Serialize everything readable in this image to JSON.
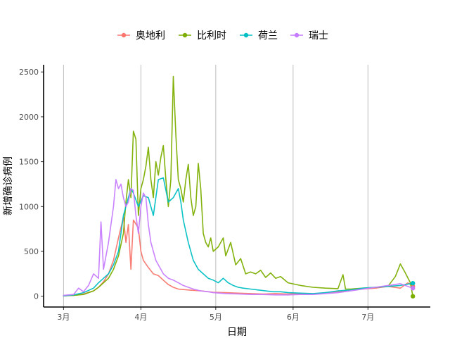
{
  "chart_data": {
    "type": "line",
    "title": "",
    "xlabel": "日期",
    "ylabel": "新增确诊病例",
    "x_ticks": [
      {
        "label": "3月",
        "day": 0
      },
      {
        "label": "4月",
        "day": 31
      },
      {
        "label": "5月",
        "day": 61
      },
      {
        "label": "6月",
        "day": 92
      },
      {
        "label": "7月",
        "day": 122
      }
    ],
    "y_ticks": [
      0,
      500,
      1000,
      1500,
      2000,
      2500
    ],
    "xlim": [
      -8,
      147
    ],
    "ylim": [
      -120,
      2580
    ],
    "grid": "vertical",
    "legend_position": "top",
    "series": [
      {
        "name": "奥地利",
        "color": "#F8766D",
        "values": [
          [
            0,
            5
          ],
          [
            4,
            10
          ],
          [
            8,
            25
          ],
          [
            12,
            60
          ],
          [
            14,
            100
          ],
          [
            16,
            160
          ],
          [
            18,
            250
          ],
          [
            20,
            400
          ],
          [
            22,
            650
          ],
          [
            24,
            880
          ],
          [
            25,
            600
          ],
          [
            26,
            800
          ],
          [
            27,
            300
          ],
          [
            28,
            850
          ],
          [
            30,
            760
          ],
          [
            31,
            500
          ],
          [
            32,
            400
          ],
          [
            34,
            320
          ],
          [
            36,
            250
          ],
          [
            38,
            230
          ],
          [
            40,
            180
          ],
          [
            42,
            130
          ],
          [
            44,
            100
          ],
          [
            46,
            80
          ],
          [
            50,
            70
          ],
          [
            55,
            60
          ],
          [
            60,
            45
          ],
          [
            65,
            40
          ],
          [
            70,
            35
          ],
          [
            75,
            30
          ],
          [
            80,
            25
          ],
          [
            85,
            30
          ],
          [
            90,
            25
          ],
          [
            95,
            30
          ],
          [
            100,
            25
          ],
          [
            105,
            40
          ],
          [
            110,
            50
          ],
          [
            115,
            70
          ],
          [
            120,
            80
          ],
          [
            125,
            90
          ],
          [
            130,
            110
          ],
          [
            135,
            90
          ],
          [
            138,
            150
          ],
          [
            140,
            110
          ]
        ]
      },
      {
        "name": "比利时",
        "color": "#7CAE00",
        "values": [
          [
            0,
            5
          ],
          [
            4,
            10
          ],
          [
            8,
            20
          ],
          [
            12,
            60
          ],
          [
            14,
            100
          ],
          [
            16,
            150
          ],
          [
            18,
            200
          ],
          [
            20,
            300
          ],
          [
            22,
            450
          ],
          [
            24,
            700
          ],
          [
            25,
            1050
          ],
          [
            26,
            1300
          ],
          [
            27,
            1100
          ],
          [
            28,
            1840
          ],
          [
            29,
            1750
          ],
          [
            30,
            900
          ],
          [
            31,
            1200
          ],
          [
            32,
            1300
          ],
          [
            33,
            1450
          ],
          [
            34,
            1660
          ],
          [
            35,
            1300
          ],
          [
            36,
            1100
          ],
          [
            37,
            1500
          ],
          [
            38,
            1350
          ],
          [
            39,
            1550
          ],
          [
            40,
            1680
          ],
          [
            41,
            1300
          ],
          [
            42,
            1000
          ],
          [
            43,
            1300
          ],
          [
            44,
            2450
          ],
          [
            45,
            1800
          ],
          [
            46,
            1300
          ],
          [
            47,
            1200
          ],
          [
            48,
            1050
          ],
          [
            49,
            1300
          ],
          [
            50,
            1470
          ],
          [
            51,
            1100
          ],
          [
            52,
            900
          ],
          [
            53,
            1000
          ],
          [
            54,
            1480
          ],
          [
            55,
            1200
          ],
          [
            56,
            700
          ],
          [
            57,
            600
          ],
          [
            58,
            550
          ],
          [
            59,
            650
          ],
          [
            60,
            500
          ],
          [
            62,
            550
          ],
          [
            64,
            650
          ],
          [
            65,
            450
          ],
          [
            67,
            600
          ],
          [
            69,
            350
          ],
          [
            71,
            420
          ],
          [
            73,
            250
          ],
          [
            75,
            270
          ],
          [
            77,
            250
          ],
          [
            79,
            290
          ],
          [
            81,
            210
          ],
          [
            83,
            260
          ],
          [
            85,
            200
          ],
          [
            87,
            220
          ],
          [
            90,
            150
          ],
          [
            95,
            120
          ],
          [
            100,
            100
          ],
          [
            105,
            90
          ],
          [
            110,
            85
          ],
          [
            112,
            240
          ],
          [
            113,
            80
          ],
          [
            115,
            80
          ],
          [
            120,
            90
          ],
          [
            125,
            100
          ],
          [
            130,
            110
          ],
          [
            133,
            220
          ],
          [
            135,
            360
          ],
          [
            137,
            260
          ],
          [
            139,
            150
          ],
          [
            140,
            0
          ]
        ]
      },
      {
        "name": "荷兰",
        "color": "#00BFC4",
        "values": [
          [
            0,
            5
          ],
          [
            4,
            15
          ],
          [
            8,
            40
          ],
          [
            12,
            90
          ],
          [
            14,
            150
          ],
          [
            16,
            200
          ],
          [
            18,
            250
          ],
          [
            20,
            350
          ],
          [
            22,
            500
          ],
          [
            24,
            900
          ],
          [
            25,
            1000
          ],
          [
            26,
            1100
          ],
          [
            27,
            1200
          ],
          [
            28,
            1150
          ],
          [
            30,
            1000
          ],
          [
            32,
            1120
          ],
          [
            34,
            1100
          ],
          [
            36,
            900
          ],
          [
            38,
            1300
          ],
          [
            40,
            1320
          ],
          [
            42,
            1050
          ],
          [
            44,
            1100
          ],
          [
            46,
            1200
          ],
          [
            47,
            1050
          ],
          [
            48,
            850
          ],
          [
            50,
            600
          ],
          [
            52,
            400
          ],
          [
            54,
            300
          ],
          [
            56,
            250
          ],
          [
            58,
            200
          ],
          [
            60,
            180
          ],
          [
            62,
            150
          ],
          [
            64,
            200
          ],
          [
            66,
            150
          ],
          [
            68,
            120
          ],
          [
            70,
            100
          ],
          [
            72,
            90
          ],
          [
            75,
            80
          ],
          [
            78,
            70
          ],
          [
            81,
            60
          ],
          [
            84,
            50
          ],
          [
            87,
            50
          ],
          [
            90,
            40
          ],
          [
            95,
            35
          ],
          [
            100,
            30
          ],
          [
            105,
            40
          ],
          [
            110,
            60
          ],
          [
            115,
            70
          ],
          [
            120,
            90
          ],
          [
            125,
            100
          ],
          [
            130,
            110
          ],
          [
            135,
            120
          ],
          [
            140,
            145
          ]
        ]
      },
      {
        "name": "瑞士",
        "color": "#C77CFF",
        "values": [
          [
            0,
            10
          ],
          [
            4,
            20
          ],
          [
            6,
            90
          ],
          [
            8,
            50
          ],
          [
            10,
            120
          ],
          [
            12,
            250
          ],
          [
            14,
            200
          ],
          [
            15,
            830
          ],
          [
            16,
            300
          ],
          [
            18,
            600
          ],
          [
            19,
            800
          ],
          [
            20,
            1000
          ],
          [
            21,
            1300
          ],
          [
            22,
            1200
          ],
          [
            23,
            1250
          ],
          [
            24,
            1100
          ],
          [
            25,
            1000
          ],
          [
            26,
            1050
          ],
          [
            27,
            1200
          ],
          [
            28,
            1180
          ],
          [
            29,
            900
          ],
          [
            30,
            700
          ],
          [
            31,
            1000
          ],
          [
            32,
            1150
          ],
          [
            33,
            1100
          ],
          [
            34,
            800
          ],
          [
            35,
            600
          ],
          [
            36,
            500
          ],
          [
            37,
            400
          ],
          [
            38,
            350
          ],
          [
            39,
            300
          ],
          [
            40,
            250
          ],
          [
            42,
            200
          ],
          [
            44,
            180
          ],
          [
            46,
            150
          ],
          [
            48,
            120
          ],
          [
            50,
            100
          ],
          [
            52,
            80
          ],
          [
            55,
            60
          ],
          [
            58,
            50
          ],
          [
            60,
            40
          ],
          [
            65,
            30
          ],
          [
            70,
            25
          ],
          [
            75,
            20
          ],
          [
            80,
            20
          ],
          [
            85,
            15
          ],
          [
            90,
            15
          ],
          [
            95,
            20
          ],
          [
            100,
            20
          ],
          [
            105,
            30
          ],
          [
            110,
            40
          ],
          [
            115,
            60
          ],
          [
            120,
            80
          ],
          [
            125,
            100
          ],
          [
            130,
            120
          ],
          [
            135,
            140
          ],
          [
            140,
            90
          ]
        ]
      }
    ]
  }
}
